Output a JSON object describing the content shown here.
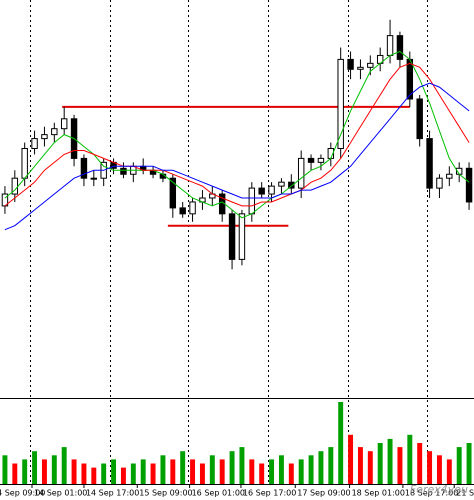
{
  "chart_data": {
    "type": "candlestick",
    "xlim": [
      -0.5,
      47.5
    ],
    "ylim": [
      0,
      100
    ],
    "open": [
      48,
      51,
      55,
      62.5,
      65,
      66,
      67.5,
      70,
      60,
      55,
      55,
      59,
      57.5,
      56,
      58,
      57,
      56,
      55,
      47.5,
      46,
      49,
      50,
      51,
      46,
      34.5,
      46,
      52.5,
      51,
      53,
      54,
      52.5,
      60,
      59,
      60,
      62.5,
      85,
      82.5,
      83,
      84,
      86,
      91,
      85,
      75,
      65,
      52.5,
      55,
      56,
      57.5
    ],
    "high": [
      53,
      57,
      64,
      67,
      68,
      69,
      73,
      71,
      61,
      57,
      60,
      60,
      59,
      59,
      60,
      58,
      57,
      56,
      49,
      50,
      52,
      53,
      52,
      47,
      47,
      54,
      54,
      54,
      55,
      56,
      62,
      61,
      61,
      64,
      88,
      87,
      85,
      86,
      88,
      95,
      92,
      87,
      76,
      67,
      56,
      58,
      59,
      59
    ],
    "low": [
      46,
      49,
      53,
      61,
      63,
      64,
      66,
      58,
      53,
      53,
      53,
      56,
      55,
      54,
      56,
      55,
      54,
      45,
      45,
      44,
      47,
      48,
      44,
      32,
      33,
      44,
      50,
      49,
      51,
      51,
      50,
      57,
      57,
      58,
      60,
      80,
      80,
      81,
      82,
      84,
      83,
      73,
      63,
      50,
      50,
      53,
      54,
      47
    ],
    "close": [
      51,
      55,
      62.5,
      65,
      66,
      67.5,
      70,
      60,
      55,
      55,
      59,
      57.5,
      56,
      58,
      57,
      56,
      55,
      47.5,
      46,
      49,
      50,
      51,
      46,
      34.5,
      46,
      52.5,
      51,
      53,
      54,
      52.5,
      60,
      59,
      60,
      62.5,
      85,
      82.5,
      83,
      84,
      86,
      91,
      85,
      75,
      65,
      52.5,
      55,
      56,
      57.5,
      49
    ],
    "up_fill": "#ffffff",
    "down_fill": "#000000",
    "series": [
      {
        "color": "#00c000",
        "values": [
          50,
          52,
          55,
          58,
          61,
          64,
          66,
          65,
          63,
          61,
          58,
          57,
          57,
          57,
          57,
          57,
          56,
          54,
          52,
          50,
          49,
          48,
          49,
          47,
          45,
          46,
          48,
          50,
          51,
          53,
          55,
          57,
          58,
          60,
          66,
          72,
          77,
          82,
          84,
          86,
          87,
          85,
          80,
          74,
          67,
          60,
          56,
          54
        ]
      },
      {
        "color": "#ff0000",
        "values": [
          48,
          50,
          52,
          54,
          57,
          59,
          61,
          62,
          62,
          61,
          60,
          59,
          58,
          58,
          57,
          57,
          57,
          56,
          55,
          54,
          53,
          51,
          50,
          49,
          48,
          48,
          49,
          49,
          50,
          51,
          52,
          54,
          55,
          57,
          60,
          64,
          68,
          72,
          76,
          80,
          83,
          84,
          83,
          80,
          76,
          72,
          68,
          64
        ]
      },
      {
        "color": "#0000ff",
        "values": [
          42,
          43,
          45,
          47,
          49,
          51,
          53,
          55,
          56,
          57,
          57,
          58,
          58,
          58,
          58,
          58,
          57,
          57,
          56,
          55,
          54,
          53,
          52,
          51,
          50,
          50,
          50,
          50,
          51,
          51,
          52,
          52,
          53,
          54,
          56,
          58,
          61,
          64,
          67,
          70,
          73,
          76,
          78,
          79,
          78,
          76,
          74,
          72
        ]
      }
    ],
    "levels": [
      {
        "value": 73,
        "from": 5.8,
        "to": 41
      },
      {
        "value": 43,
        "from": 16.5,
        "to": 28.7
      }
    ],
    "level_color": "#e00000",
    "volume": {
      "values": [
        35,
        25,
        30,
        40,
        30,
        35,
        45,
        30,
        25,
        20,
        25,
        30,
        20,
        25,
        30,
        25,
        35,
        30,
        40,
        30,
        25,
        35,
        30,
        40,
        45,
        30,
        25,
        30,
        35,
        25,
        30,
        35,
        40,
        45,
        100,
        60,
        45,
        40,
        50,
        55,
        45,
        60,
        50,
        40,
        35,
        30,
        45,
        50
      ],
      "ylim": [
        0,
        100
      ],
      "up_color": "#00a000",
      "down_color": "#ff0000"
    },
    "xgrid": [
      2.5,
      10.6,
      18.5,
      26.6,
      34.7,
      42.7
    ],
    "xticks": [
      {
        "value": -1,
        "label": "4 Sep 09:00"
      },
      {
        "value": 2.74,
        "label": "14 Sep 01:00"
      },
      {
        "value": 8.0,
        "label": "14 Sep 17:00"
      },
      {
        "value": 13.4,
        "label": "15 Sep 09:00"
      },
      {
        "value": 18.7,
        "label": "16 Sep 01:00"
      },
      {
        "value": 23.9,
        "label": "16 Sep 17:00"
      },
      {
        "value": 29.4,
        "label": "17 Sep 09:00"
      },
      {
        "value": 34.9,
        "label": "18 Sep 01:00"
      },
      {
        "value": 40.3,
        "label": "18 Sep 17:00"
      },
      {
        "value": 45.5,
        "label": "21 S"
      }
    ],
    "watermark": "Forex4you"
  }
}
